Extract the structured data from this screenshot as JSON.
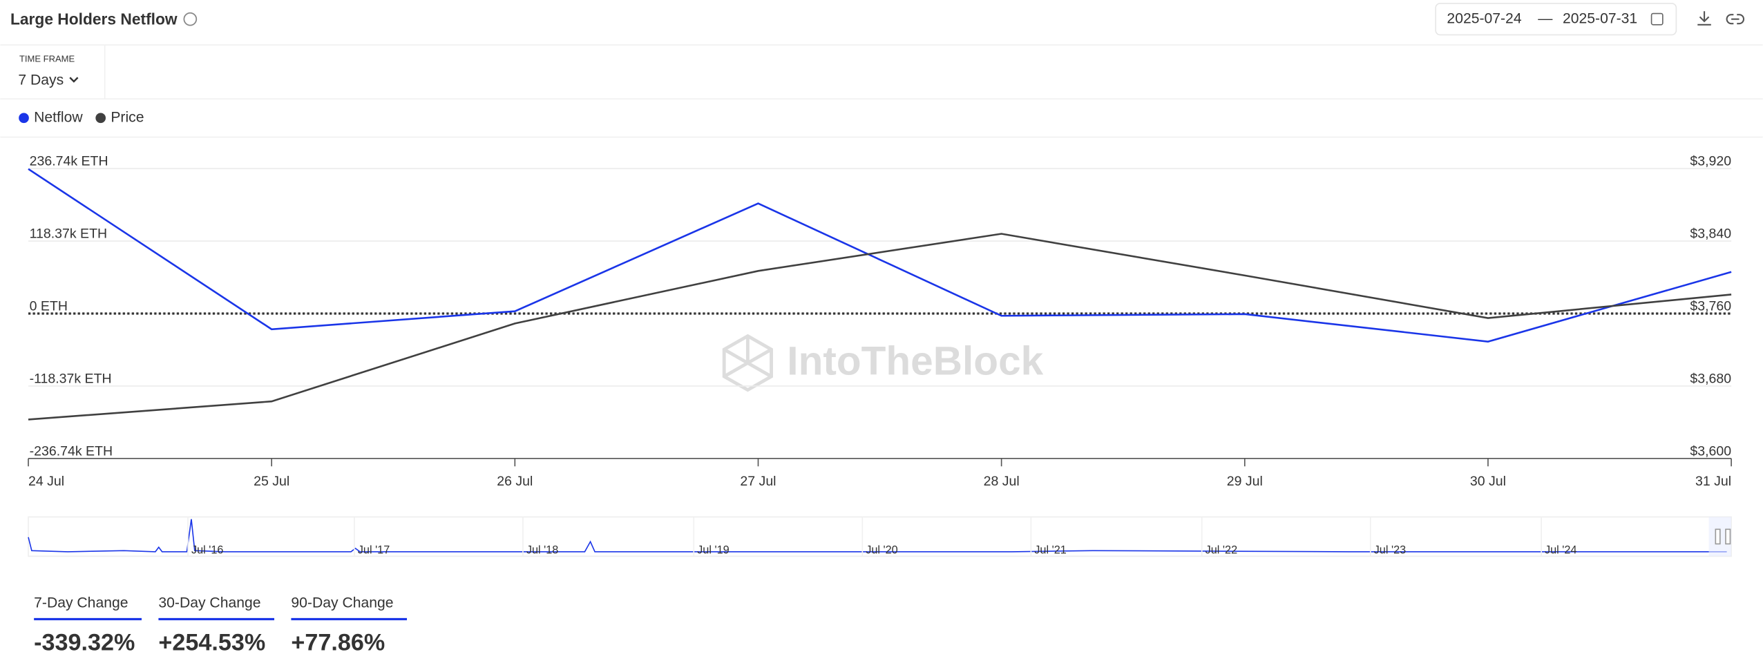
{
  "header": {
    "title": "Large Holders Netflow",
    "date_from": "2025-07-24",
    "date_separator": "—",
    "date_to": "2025-07-31"
  },
  "timeframe": {
    "label": "TIME FRAME",
    "value": "7 Days"
  },
  "watermark": "IntoTheBlock",
  "navigator": {
    "labels": [
      "Jul '16",
      "Jul '17",
      "Jul '18",
      "Jul '19",
      "Jul '20",
      "Jul '21",
      "Jul '22",
      "Jul '23",
      "Jul '24"
    ]
  },
  "stats": [
    {
      "label": "7-Day Change",
      "value": "-339.32%"
    },
    {
      "label": "30-Day Change",
      "value": "+254.53%"
    },
    {
      "label": "90-Day Change",
      "value": "+77.86%"
    }
  ],
  "chart_data": {
    "type": "line",
    "categories": [
      "24 Jul",
      "25 Jul",
      "26 Jul",
      "27 Jul",
      "28 Jul",
      "29 Jul",
      "30 Jul",
      "31 Jul"
    ],
    "series": [
      {
        "name": "Netflow",
        "color": "#1a35e8",
        "axis": "y",
        "values": [
          236000,
          -25700,
          3700,
          179800,
          -3700,
          -1000,
          -45900,
          67900
        ]
      },
      {
        "name": "Price",
        "color": "#404040",
        "axis": "y2",
        "values": [
          3643,
          3663,
          3749,
          3807,
          3848,
          3802,
          3755,
          3781
        ]
      }
    ],
    "ylim": [
      -236740,
      236740
    ],
    "yticks": [
      {
        "value": -236740,
        "label": "-236.74k ETH"
      },
      {
        "value": -118370,
        "label": "-118.37k ETH"
      },
      {
        "value": 0,
        "label": "0 ETH"
      },
      {
        "value": 118370,
        "label": "118.37k ETH"
      },
      {
        "value": 236740,
        "label": "236.74k ETH"
      }
    ],
    "y2lim": [
      3600,
      3920
    ],
    "y2ticks": [
      {
        "value": 3600,
        "label": "$3,600"
      },
      {
        "value": 3680,
        "label": "$3,680"
      },
      {
        "value": 3760,
        "label": "$3,760"
      },
      {
        "value": 3840,
        "label": "$3,840"
      },
      {
        "value": 3920,
        "label": "$3,920"
      }
    ],
    "grid": true
  }
}
